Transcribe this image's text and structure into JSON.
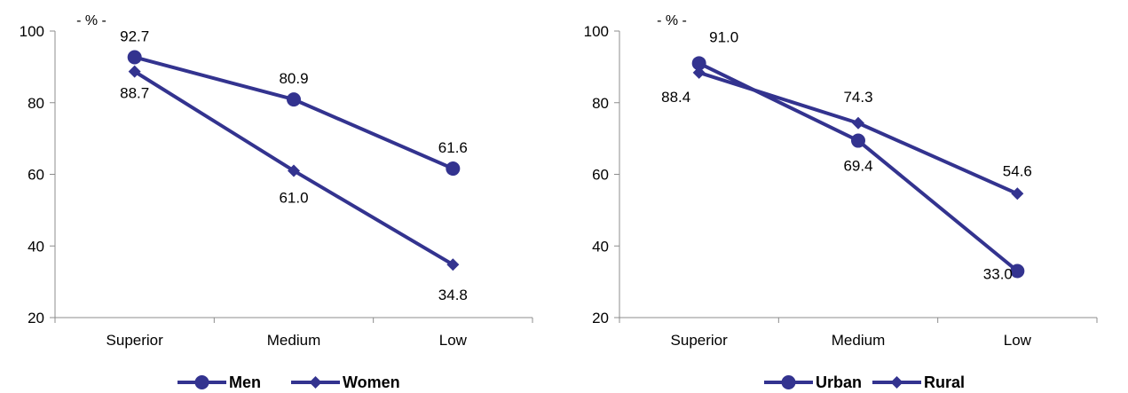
{
  "chart_data": [
    {
      "type": "line",
      "unit_label": "- % -",
      "categories": [
        "Superior",
        "Medium",
        "Low"
      ],
      "ylim": [
        20,
        100
      ],
      "yticks": [
        20,
        40,
        60,
        80,
        100
      ],
      "grid": false,
      "legend_position": "bottom",
      "line_color": "#33338f",
      "series": [
        {
          "name": "Men",
          "marker": "circle",
          "values": [
            92.7,
            80.9,
            61.6
          ],
          "labels": [
            "92.7",
            "80.9",
            "61.6"
          ]
        },
        {
          "name": "Women",
          "marker": "diamond",
          "values": [
            88.7,
            61.0,
            34.8
          ],
          "labels": [
            "88.7",
            "61.0",
            "34.8"
          ]
        }
      ]
    },
    {
      "type": "line",
      "unit_label": "- % -",
      "categories": [
        "Superior",
        "Medium",
        "Low"
      ],
      "ylim": [
        20,
        100
      ],
      "yticks": [
        20,
        40,
        60,
        80,
        100
      ],
      "grid": false,
      "legend_position": "bottom",
      "line_color": "#33338f",
      "series": [
        {
          "name": "Urban",
          "marker": "circle",
          "values": [
            91.0,
            69.4,
            33.0
          ],
          "labels": [
            "91.0",
            "69.4",
            "33.0"
          ]
        },
        {
          "name": "Rural",
          "marker": "diamond",
          "values": [
            88.4,
            74.3,
            54.6
          ],
          "labels": [
            "88.4",
            "74.3",
            "54.6"
          ]
        }
      ]
    }
  ]
}
